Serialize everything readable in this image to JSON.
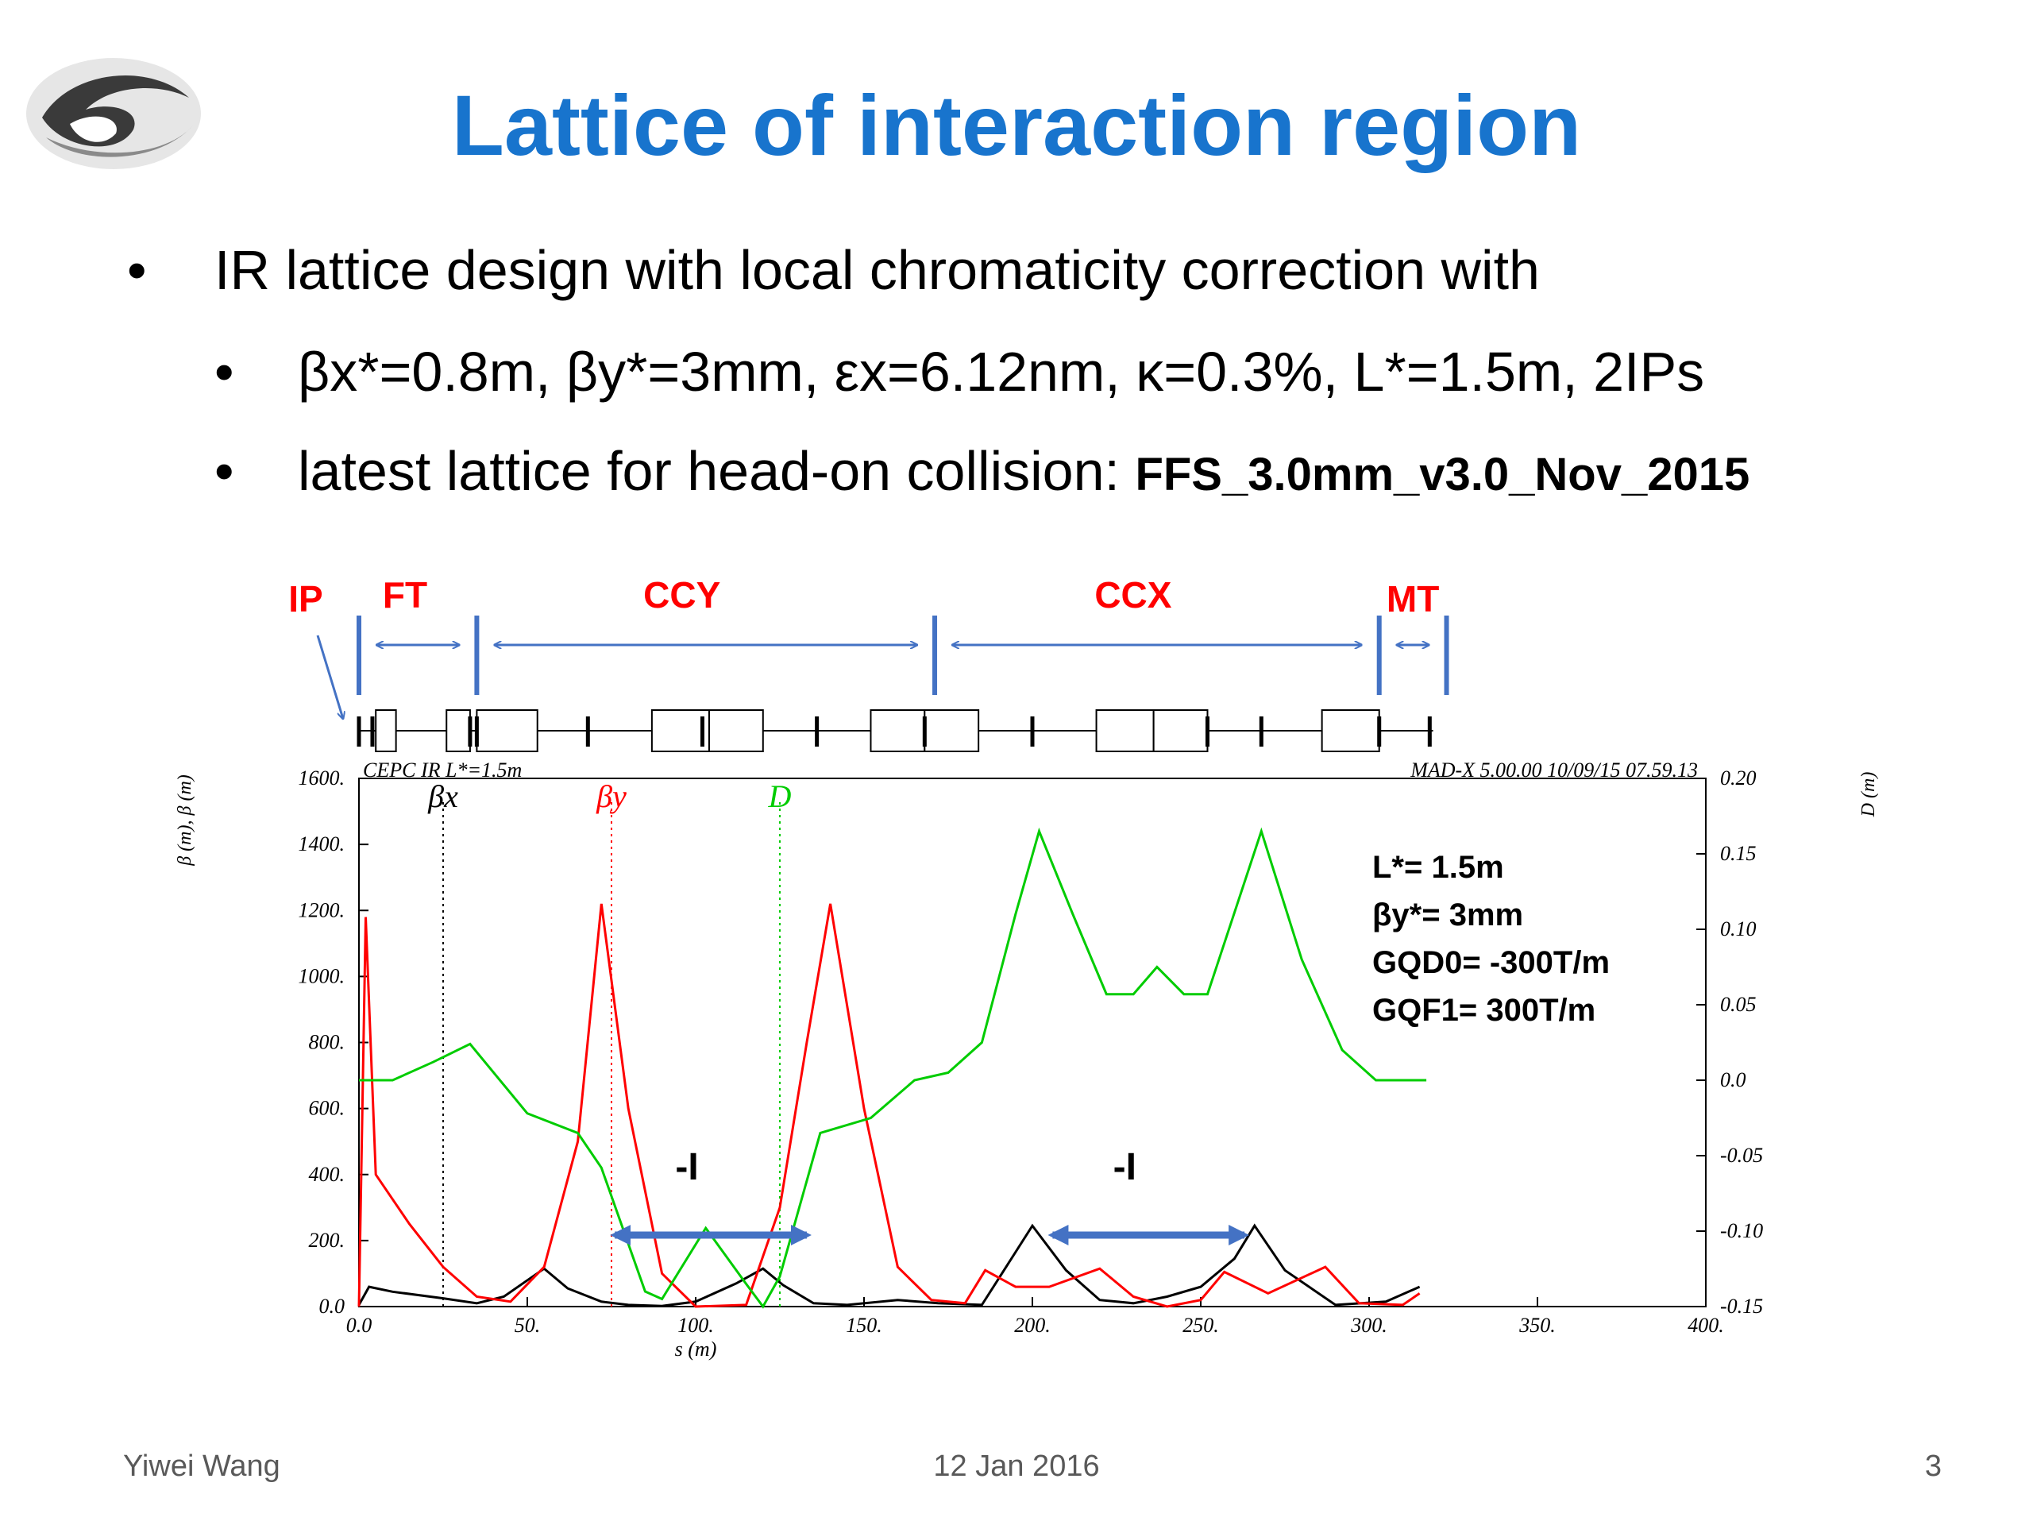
{
  "slide": {
    "title": "Lattice of interaction region",
    "bullets": [
      "IR lattice design with local chromaticity correction with",
      "βx*=0.8m, βy*=3mm, εx=6.12nm, κ=0.3%, L*=1.5m, 2IPs",
      "latest lattice for head-on collision: "
    ],
    "lattice_name": "FFS_3.0mm_v3.0_Nov_2015",
    "footer": {
      "author": "Yiwei Wang",
      "date": "12 Jan 2016",
      "page": "3"
    }
  },
  "colors": {
    "title": "#1874cd",
    "section": "#ff0000",
    "arrows": "#4472c4",
    "beta_x": "#000000",
    "beta_y": "#ff0000",
    "dispersion": "#00cc00"
  },
  "chart_data": {
    "type": "line",
    "header_left": "CEPC IR L*=1.5m",
    "header_right": "MAD-X 5.00.00  10/09/15 07.59.13",
    "xlabel": "s (m)",
    "ylabel_left": "β (m), β (m)",
    "ylabel_right": "D (m)",
    "xlim": [
      0,
      400
    ],
    "ylim_left": [
      0,
      1600
    ],
    "ylim_right": [
      -0.15,
      0.2
    ],
    "x_ticks": [
      "0.0",
      "50.",
      "100.",
      "150.",
      "200.",
      "250.",
      "300.",
      "350.",
      "400."
    ],
    "y_ticks_left": [
      "0.0",
      "200.",
      "400.",
      "600.",
      "800.",
      "1000.",
      "1200.",
      "1400.",
      "1600."
    ],
    "y_ticks_right": [
      "-0.15",
      "-0.10",
      "-0.05",
      "0.0",
      "0.05",
      "0.10",
      "0.15",
      "0.20"
    ],
    "legend": {
      "beta_x": "βx",
      "beta_y": "βy",
      "dispersion": "D"
    },
    "sections": [
      {
        "label": "IP",
        "s": 0
      },
      {
        "label": "FT",
        "s_start": 0,
        "s_end": 35
      },
      {
        "label": "CCY",
        "s_start": 35,
        "s_end": 171
      },
      {
        "label": "CCX",
        "s_start": 171,
        "s_end": 303
      },
      {
        "label": "MT",
        "s_start": 303,
        "s_end": 323
      }
    ],
    "annotations": {
      "info": [
        "L*= 1.5m",
        "βy*= 3mm",
        "GQD0= -300T/m",
        "GQF1= 300T/m"
      ],
      "minus_i": "-I",
      "minus_i_spans": [
        [
          76,
          133
        ],
        [
          206,
          263
        ]
      ]
    },
    "series": [
      {
        "name": "βx",
        "points": [
          [
            0,
            5
          ],
          [
            3,
            60
          ],
          [
            10,
            45
          ],
          [
            25,
            25
          ],
          [
            35,
            10
          ],
          [
            43,
            30
          ],
          [
            55,
            115
          ],
          [
            62,
            55
          ],
          [
            72,
            15
          ],
          [
            80,
            5
          ],
          [
            90,
            2
          ],
          [
            100,
            15
          ],
          [
            112,
            70
          ],
          [
            120,
            115
          ],
          [
            126,
            65
          ],
          [
            135,
            10
          ],
          [
            145,
            5
          ],
          [
            160,
            20
          ],
          [
            172,
            10
          ],
          [
            185,
            5
          ],
          [
            200,
            245
          ],
          [
            210,
            110
          ],
          [
            220,
            20
          ],
          [
            230,
            10
          ],
          [
            240,
            30
          ],
          [
            250,
            60
          ],
          [
            260,
            145
          ],
          [
            266,
            245
          ],
          [
            275,
            110
          ],
          [
            290,
            5
          ],
          [
            305,
            15
          ],
          [
            315,
            60
          ]
        ]
      },
      {
        "name": "βy",
        "points": [
          [
            0,
            0
          ],
          [
            2,
            1180
          ],
          [
            5,
            400
          ],
          [
            15,
            250
          ],
          [
            25,
            120
          ],
          [
            35,
            30
          ],
          [
            45,
            15
          ],
          [
            55,
            120
          ],
          [
            65,
            500
          ],
          [
            72,
            1220
          ],
          [
            80,
            600
          ],
          [
            90,
            100
          ],
          [
            100,
            0
          ],
          [
            115,
            5
          ],
          [
            125,
            300
          ],
          [
            133,
            800
          ],
          [
            140,
            1220
          ],
          [
            150,
            600
          ],
          [
            160,
            120
          ],
          [
            170,
            20
          ],
          [
            180,
            10
          ],
          [
            186,
            110
          ],
          [
            195,
            60
          ],
          [
            205,
            60
          ],
          [
            220,
            115
          ],
          [
            230,
            30
          ],
          [
            240,
            0
          ],
          [
            250,
            20
          ],
          [
            257,
            105
          ],
          [
            270,
            40
          ],
          [
            287,
            120
          ],
          [
            297,
            10
          ],
          [
            310,
            5
          ],
          [
            315,
            40
          ]
        ]
      },
      {
        "name": "D",
        "points": [
          [
            0,
            0.0
          ],
          [
            10,
            0.0
          ],
          [
            22,
            0.012
          ],
          [
            33,
            0.024
          ],
          [
            50,
            -0.022
          ],
          [
            65,
            -0.035
          ],
          [
            72,
            -0.058
          ],
          [
            85,
            -0.14
          ],
          [
            90,
            -0.145
          ],
          [
            103,
            -0.098
          ],
          [
            115,
            -0.135
          ],
          [
            120,
            -0.15
          ],
          [
            125,
            -0.13
          ],
          [
            137,
            -0.035
          ],
          [
            152,
            -0.025
          ],
          [
            165,
            0.0
          ],
          [
            175,
            0.005
          ],
          [
            185,
            0.025
          ],
          [
            195,
            0.11
          ],
          [
            202,
            0.165
          ],
          [
            212,
            0.11
          ],
          [
            222,
            0.057
          ],
          [
            230,
            0.057
          ],
          [
            237,
            0.075
          ],
          [
            245,
            0.057
          ],
          [
            252,
            0.057
          ],
          [
            268,
            0.165
          ],
          [
            280,
            0.08
          ],
          [
            292,
            0.02
          ],
          [
            302,
            0.0
          ],
          [
            317,
            0.0
          ]
        ]
      }
    ]
  }
}
